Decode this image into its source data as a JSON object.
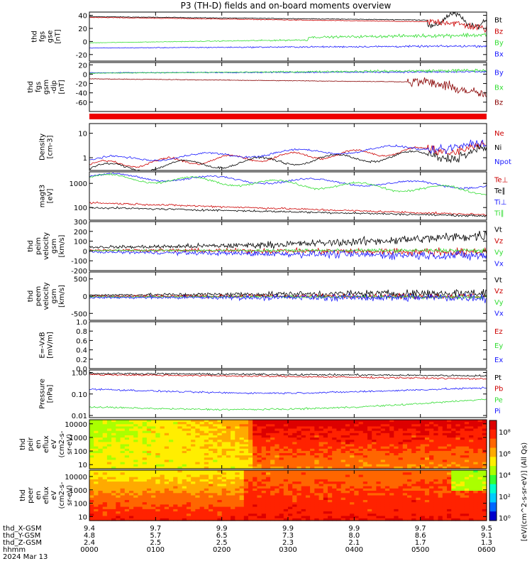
{
  "title": "P3 (TH-D) fields and on-board moments overview",
  "colors": {
    "black": "#000000",
    "red": "#cc0000",
    "green": "#33dd33",
    "blue": "#1a1aff",
    "dkred": "#880000"
  },
  "chart_data": [
    {
      "type": "line",
      "id": "fgs_gse",
      "ylabel_lines": [
        "thd",
        "fgs",
        "gse",
        "[nT]"
      ],
      "ylim": [
        -30,
        45
      ],
      "yticks": [
        "40",
        "20",
        "0",
        "-20"
      ],
      "series": [
        {
          "name": "Bt",
          "color": "#000000"
        },
        {
          "name": "Bz",
          "color": "#cc0000"
        },
        {
          "name": "By",
          "color": "#33dd33"
        },
        {
          "name": "Bx",
          "color": "#1a1aff"
        }
      ]
    },
    {
      "type": "line",
      "id": "fgs_gsm",
      "ylabel_lines": [
        "thd",
        "fgs",
        "gsm",
        "-dip",
        "[nT]"
      ],
      "ylim": [
        -80,
        25
      ],
      "yticks": [
        "20",
        "0",
        "-20",
        "-40",
        "-60"
      ],
      "series": [
        {
          "name": "By",
          "color": "#1a1aff"
        },
        {
          "name": "Bx",
          "color": "#33dd33"
        },
        {
          "name": "Bz",
          "color": "#880000"
        }
      ]
    },
    {
      "type": "line",
      "id": "density",
      "ylabel_lines": [
        "Density",
        "[cm-3]"
      ],
      "ylim": [
        0.3,
        25
      ],
      "scale": "log",
      "yticks": [
        "10",
        "1"
      ],
      "series": [
        {
          "name": "Ne",
          "color": "#cc0000"
        },
        {
          "name": "Ni",
          "color": "#000000"
        },
        {
          "name": "Npot",
          "color": "#1a1aff"
        }
      ]
    },
    {
      "type": "line",
      "id": "temp",
      "ylabel_lines": [
        "magt3",
        "[eV]"
      ],
      "ylim": [
        30,
        3000
      ],
      "scale": "log",
      "yticks": [
        "1000",
        "100"
      ],
      "series": [
        {
          "name": "Te⊥",
          "color": "#cc0000"
        },
        {
          "name": "Te∥",
          "color": "#000000"
        },
        {
          "name": "Ti⊥",
          "color": "#1a1aff"
        },
        {
          "name": "Ti∥",
          "color": "#33dd33"
        }
      ]
    },
    {
      "type": "line",
      "id": "ivel",
      "ylabel_lines": [
        "thd",
        "peim",
        "velocity",
        "gsm",
        "[km/s]"
      ],
      "ylim": [
        -200,
        300
      ],
      "yticks": [
        "300",
        "200",
        "100",
        "0",
        "-100",
        "-200"
      ],
      "series": [
        {
          "name": "Vt",
          "color": "#000000"
        },
        {
          "name": "Vz",
          "color": "#cc0000"
        },
        {
          "name": "Vy",
          "color": "#33dd33"
        },
        {
          "name": "Vx",
          "color": "#1a1aff"
        }
      ]
    },
    {
      "type": "line",
      "id": "evel",
      "ylabel_lines": [
        "thd",
        "peem",
        "velocity",
        "gsm",
        "[km/s]"
      ],
      "ylim": [
        -700,
        700
      ],
      "yticks": [
        "500",
        "0",
        "-500"
      ],
      "series": [
        {
          "name": "Vt",
          "color": "#000000"
        },
        {
          "name": "Vz",
          "color": "#cc0000"
        },
        {
          "name": "Vy",
          "color": "#33dd33"
        },
        {
          "name": "Vx",
          "color": "#1a1aff"
        }
      ]
    },
    {
      "type": "line",
      "id": "efield",
      "ylabel_lines": [
        "E=-VxB",
        "[mV/m]"
      ],
      "ylim": [
        0,
        1
      ],
      "yticks": [
        "1.0",
        "0.8",
        "0.6",
        "0.4",
        "0.2",
        "0.0"
      ],
      "series": [
        {
          "name": "Ez",
          "color": "#cc0000"
        },
        {
          "name": "Ey",
          "color": "#33dd33"
        },
        {
          "name": "Ex",
          "color": "#1a1aff"
        }
      ]
    },
    {
      "type": "line",
      "id": "pressure",
      "ylabel_lines": [
        "Pressure",
        "[nPa]"
      ],
      "ylim": [
        0.008,
        1.3
      ],
      "scale": "log",
      "yticks": [
        "1.00",
        "0.10",
        "0.01"
      ],
      "series": [
        {
          "name": "Pt",
          "color": "#000000"
        },
        {
          "name": "Pb",
          "color": "#cc0000"
        },
        {
          "name": "Pe",
          "color": "#33dd33"
        },
        {
          "name": "Pi",
          "color": "#1a1aff"
        }
      ]
    },
    {
      "type": "heatmap",
      "id": "ion_spec",
      "ylabel_lines": [
        "thd",
        "peir",
        "en",
        "eflux",
        "eV",
        "(cm2-s-",
        "sr-eV)"
      ],
      "ylim": [
        5,
        20000
      ],
      "scale": "log",
      "yticks": [
        "10000",
        "1000",
        "100",
        "10"
      ]
    },
    {
      "type": "heatmap",
      "id": "ele_spec",
      "ylabel_lines": [
        "thd",
        "peer",
        "en",
        "eflux",
        "eV",
        "(cm2-s-",
        "sr-eV)"
      ],
      "ylim": [
        5,
        30000
      ],
      "scale": "log",
      "yticks": [
        "10000",
        "1000",
        "100",
        "10"
      ]
    }
  ],
  "colorbar": {
    "ticks": [
      "10⁸",
      "10⁶",
      "10⁴",
      "10²",
      "10⁰"
    ],
    "label": "[eV/(cm^2-s-sr-eV)] (All Qs)"
  },
  "footer": {
    "rows": [
      {
        "label": "thd_X-GSM",
        "values": [
          "9.4",
          "9.7",
          "9.9",
          "9.9",
          "9.9",
          "9.7",
          "9.5"
        ]
      },
      {
        "label": "thd_Y-GSM",
        "values": [
          "4.8",
          "5.7",
          "6.5",
          "7.3",
          "8.0",
          "8.6",
          "9.1"
        ]
      },
      {
        "label": "thd_Z-GSM",
        "values": [
          "2.4",
          "2.5",
          "2.5",
          "2.3",
          "2.1",
          "1.7",
          "1.3"
        ]
      },
      {
        "label": "hhmm",
        "values": [
          "0000",
          "0100",
          "0200",
          "0300",
          "0400",
          "0500",
          "0600"
        ]
      }
    ],
    "date": "2024 Mar 13"
  }
}
